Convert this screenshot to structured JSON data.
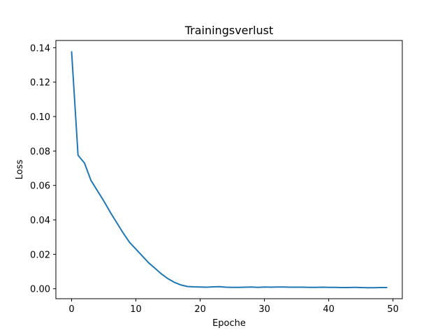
{
  "chart_data": {
    "type": "line",
    "title": "Trainingsverlust",
    "xlabel": "Epoche",
    "ylabel": "Loss",
    "xlim": [
      -2.45,
      51.45
    ],
    "ylim": [
      -0.0058,
      0.1442
    ],
    "xticks": [
      0,
      10,
      20,
      30,
      40,
      50
    ],
    "yticks": [
      0.0,
      0.02,
      0.04,
      0.06,
      0.08,
      0.1,
      0.12,
      0.14
    ],
    "grid": false,
    "line_color": "#1f77b4",
    "series": [
      {
        "x": [
          0,
          1,
          2,
          3,
          4,
          5,
          6,
          7,
          8,
          9,
          10,
          11,
          12,
          13,
          14,
          15,
          16,
          17,
          18,
          19,
          20,
          21,
          22,
          23,
          24,
          25,
          26,
          27,
          28,
          29,
          30,
          31,
          32,
          33,
          34,
          35,
          36,
          37,
          38,
          39,
          40,
          41,
          42,
          43,
          44,
          45,
          46,
          47,
          48,
          49
        ],
        "values": [
          0.1375,
          0.0775,
          0.073,
          0.063,
          0.057,
          0.051,
          0.0445,
          0.0385,
          0.0325,
          0.027,
          0.023,
          0.019,
          0.015,
          0.0118,
          0.0085,
          0.0058,
          0.0037,
          0.0022,
          0.0013,
          0.0011,
          0.001,
          0.0009,
          0.0011,
          0.0012,
          0.0009,
          0.0008,
          0.0008,
          0.0009,
          0.001,
          0.0008,
          0.001,
          0.0009,
          0.001,
          0.001,
          0.0009,
          0.0009,
          0.0009,
          0.0008,
          0.0008,
          0.0009,
          0.0008,
          0.0008,
          0.0007,
          0.0007,
          0.0008,
          0.0007,
          0.0006,
          0.0006,
          0.0007,
          0.0007
        ]
      }
    ]
  }
}
